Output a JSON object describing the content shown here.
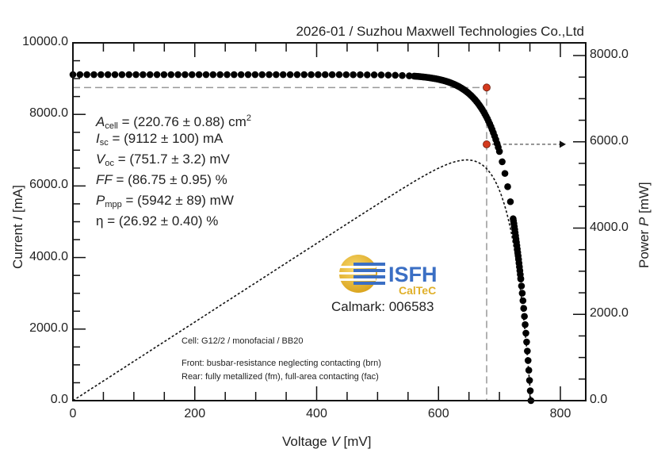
{
  "header": "2026-01 / Suzhou Maxwell Technologies Co.,Ltd",
  "parameters": {
    "a_cell": {
      "symbol": "A",
      "sub": "cell",
      "value": " = (220.76 ± 0.88) cm",
      "sup": "2"
    },
    "i_sc": {
      "symbol": "I",
      "sub": "sc",
      "value": " = (9112 ± 100) mA"
    },
    "v_oc": {
      "symbol": "V",
      "sub": "oc",
      "value": " = (751.7 ± 3.2) mV"
    },
    "ff": {
      "symbol": "FF",
      "value": " = (86.75 ± 0.95) %"
    },
    "p_mpp": {
      "symbol": "P",
      "sub": "mpp",
      "value": " = (5942 ± 89) mW"
    },
    "eta": {
      "symbol": "η",
      "value": " = (26.92 ± 0.40) %"
    }
  },
  "notes": {
    "cell": "Cell: G12/2 / monofacial / BB20",
    "front": "Front: busbar-resistance neglecting contacting (brn)",
    "rear": "Rear: fully metallized (fm), full-area contacting (fac)"
  },
  "logo": {
    "name": "ISFH",
    "sub": "CalTeC",
    "calmark": "Calmark: 006583"
  },
  "colors": {
    "mpp_marker": "#d43a1e",
    "logo_blue": "#3b6fc4",
    "logo_yellow": "#e8b72a",
    "guide": "#999999"
  },
  "chart_data": {
    "type": "scatter",
    "title": "",
    "xlabel": {
      "pre": "Voltage ",
      "var": "V",
      "post": " [mV]"
    },
    "ylabel_left": {
      "pre": "Current ",
      "var": "I",
      "post": " [mA]"
    },
    "ylabel_right": {
      "pre": "Power ",
      "var": "P",
      "post": " [mW]"
    },
    "xlim": [
      0,
      840
    ],
    "ylim_left": [
      0,
      10000
    ],
    "ylim_right": [
      0,
      8300
    ],
    "x_ticks": [
      "0",
      "200",
      "400",
      "600",
      "800"
    ],
    "x_tick_values": [
      0,
      200,
      400,
      600,
      800
    ],
    "y_left_ticks": [
      "0.0",
      "2000.0",
      "4000.0",
      "6000.0",
      "8000.0",
      "10000.0"
    ],
    "y_left_tick_values": [
      0,
      2000,
      4000,
      6000,
      8000,
      10000
    ],
    "y_right_ticks": [
      "0.0",
      "2000.0",
      "4000.0",
      "6000.0",
      "8000.0"
    ],
    "y_right_tick_values": [
      0,
      2000,
      4000,
      6000,
      8000
    ],
    "grid": false,
    "isc": 9112,
    "voc": 751.7,
    "mpp": {
      "v": 679,
      "i": 8751,
      "p": 5942
    },
    "series": [
      {
        "name": "I-V curve",
        "style": "dots",
        "axis": "left"
      },
      {
        "name": "P-V curve",
        "style": "dotted-line",
        "axis": "right"
      }
    ]
  }
}
